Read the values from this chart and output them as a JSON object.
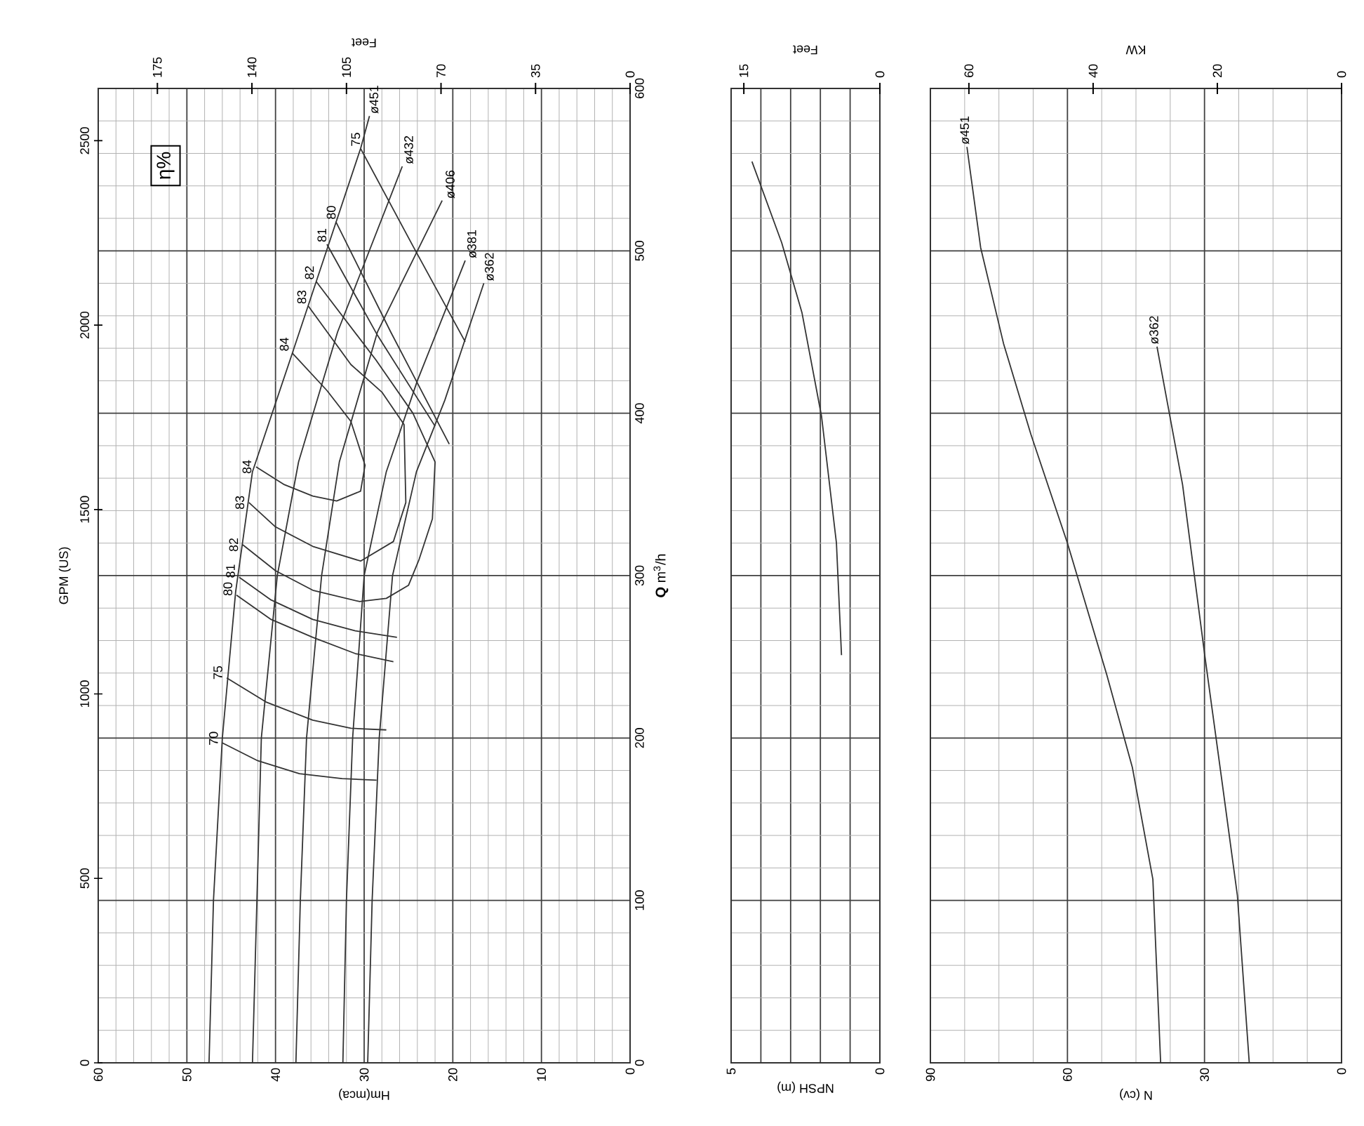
{
  "chart_data": [
    {
      "type": "line",
      "xlabel": "Hm(mca)",
      "x2label": "Feet",
      "ylabel": "**Q** m$^{3}$/h",
      "y2label": "GPM (US)",
      "xlim": [
        60,
        0
      ],
      "xticks": [
        60,
        50,
        40,
        30,
        20,
        10,
        0
      ],
      "x2lim": [
        196.9,
        0
      ],
      "x2ticks": [
        175,
        140,
        105,
        70,
        35,
        0
      ],
      "ylim": [
        0,
        600
      ],
      "yticks": [
        0,
        100,
        200,
        300,
        400,
        500,
        600
      ],
      "y2lim": [
        0,
        2641.7
      ],
      "y2ticks": [
        0,
        500,
        1000,
        1500,
        2000,
        2500
      ],
      "grid": true,
      "annotations": [
        "η%"
      ],
      "series": [
        {
          "name": "ø451",
          "color": "#333333",
          "x": [
            47.5,
            47.0,
            46.0,
            44.5,
            42.6,
            38.1,
            30.4,
            29.4
          ],
          "values": [
            0,
            100,
            200,
            290,
            364,
            437,
            563,
            583
          ]
        },
        {
          "name": "ø432",
          "color": "#333333",
          "x": [
            42.6,
            42.1,
            41.6,
            39.8,
            37.4,
            33.0,
            25.7
          ],
          "values": [
            0,
            100,
            200,
            300,
            370,
            450,
            552
          ]
        },
        {
          "name": "ø406",
          "color": "#333333",
          "x": [
            37.7,
            37.2,
            36.5,
            34.8,
            32.8,
            28.5,
            21.2
          ],
          "values": [
            0,
            100,
            200,
            300,
            370,
            450,
            531
          ]
        },
        {
          "name": "ø381",
          "color": "#333333",
          "x": [
            32.4,
            32.0,
            31.3,
            30.0,
            27.5,
            24.0,
            18.6
          ],
          "values": [
            0,
            100,
            200,
            300,
            364,
            420,
            494
          ]
        },
        {
          "name": "ø362",
          "color": "#333333",
          "x": [
            29.6,
            29.1,
            28.3,
            26.8,
            24.1,
            20.9,
            16.5
          ],
          "values": [
            0,
            100,
            200,
            300,
            364,
            408,
            480
          ]
        },
        {
          "name": "70",
          "color": "#333333",
          "x": [
            28.6,
            32.5,
            37.3,
            42.0,
            46.0
          ],
          "values": [
            174,
            175,
            178,
            186,
            197
          ]
        },
        {
          "name": "75",
          "color": "#333333",
          "x": [
            27.5,
            31.5,
            35.8,
            41.0,
            45.5
          ],
          "values": [
            205,
            206,
            211,
            222,
            237
          ]
        },
        {
          "name": "80",
          "color": "#333333",
          "x": [
            26.7,
            31.0,
            35.8,
            40.5,
            44.4
          ],
          "values": [
            247,
            252,
            262,
            273,
            288
          ]
        },
        {
          "name": "81",
          "color": "#333333",
          "x": [
            26.3,
            31.0,
            35.8,
            40.5,
            44.1
          ],
          "values": [
            262,
            266,
            273,
            285,
            299
          ]
        },
        {
          "name": "82",
          "color": "#333333",
          "x": [
            43.7,
            40.0,
            35.8,
            30.5,
            27.5,
            25.0,
            23.8,
            22.3,
            22.0,
            24.5,
            28.7,
            35.4
          ],
          "values": [
            319,
            303,
            291,
            284,
            286,
            294,
            310,
            335,
            370,
            400,
            433,
            481
          ]
        },
        {
          "name": "83",
          "color": "#333333",
          "x": [
            43.0,
            40.0,
            35.8,
            30.4,
            26.7,
            25.3,
            25.5,
            28.0,
            31.5,
            36.3
          ],
          "values": [
            345,
            330,
            318,
            309,
            321,
            345,
            393,
            413,
            430,
            466
          ]
        },
        {
          "name": "84",
          "color": "#333333",
          "x": [
            42.2,
            39.0,
            35.8,
            33.1,
            30.4,
            29.9,
            31.5,
            34.2,
            38.1
          ],
          "values": [
            367,
            356,
            349,
            346,
            352,
            368,
            395,
            414,
            437
          ]
        },
        {
          "name": "81",
          "color": "#333333",
          "x": [
            22.0,
            28.5,
            34.2
          ],
          "values": [
            392,
            448,
            504
          ]
        },
        {
          "name": "80",
          "color": "#333333",
          "x": [
            20.4,
            27.0,
            33.2
          ],
          "values": [
            381,
            450,
            518
          ]
        },
        {
          "name": "75",
          "color": "#333333",
          "x": [
            18.6,
            24.5,
            30.4
          ],
          "values": [
            444,
            503,
            563
          ]
        }
      ]
    },
    {
      "type": "line",
      "xlabel": "NPSH (m)",
      "x2label": "Feet",
      "xlim": [
        5,
        0
      ],
      "xticks": [
        5,
        {
          "value": 4,
          "label": null
        },
        {
          "value": 3,
          "label": null
        },
        {
          "value": 2,
          "label": null
        },
        {
          "value": 1,
          "label": null
        },
        0
      ],
      "x2lim": [
        16.4,
        0
      ],
      "x2ticks": [
        15,
        0
      ],
      "ylim": [
        0,
        600
      ],
      "yticks": [
        0,
        100,
        200,
        300,
        400,
        500,
        600
      ],
      "tick_labels": "x",
      "grid": true,
      "series": [
        {
          "color": "#333333",
          "x": [
            1.29,
            1.46,
            1.96,
            2.62,
            3.3,
            4.3
          ],
          "values": [
            251,
            320,
            398,
            462,
            505,
            555
          ]
        }
      ]
    },
    {
      "type": "line",
      "xlabel": "N (cv)",
      "x2label": "KW",
      "xlim": [
        90,
        0
      ],
      "xticks": [
        90,
        60,
        30,
        0
      ],
      "x2lim": [
        66.2,
        0
      ],
      "x2ticks": [
        60,
        40,
        20,
        0
      ],
      "ylim": [
        0,
        600
      ],
      "yticks": [
        0,
        100,
        200,
        300,
        400,
        500,
        600
      ],
      "tick_labels": "x",
      "grid": true,
      "series": [
        {
          "name": "ø451",
          "color": "#333333",
          "x": [
            39.6,
            41.3,
            45.8,
            51.4,
            60,
            68,
            74,
            79,
            82
          ],
          "values": [
            0,
            113,
            182,
            239,
            320,
            387,
            443,
            502,
            564
          ]
        },
        {
          "name": "ø362",
          "color": "#333333",
          "x": [
            20.2,
            22.8,
            26.3,
            29.9,
            34.8,
            40.4
          ],
          "values": [
            0,
            103,
            176,
            250,
            356,
            441
          ]
        }
      ]
    }
  ]
}
